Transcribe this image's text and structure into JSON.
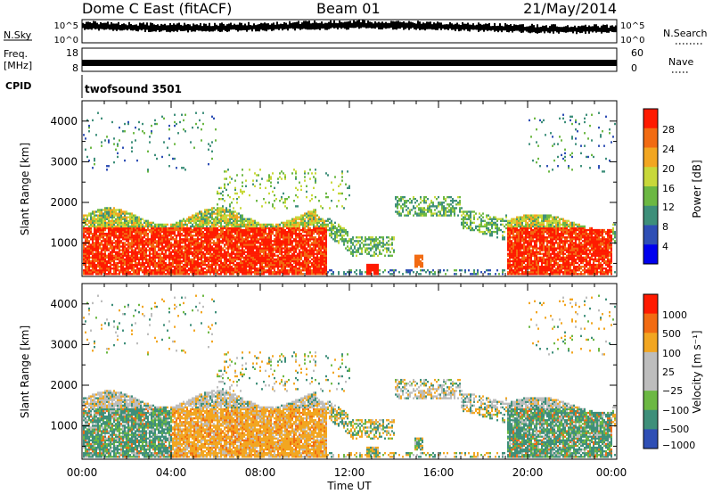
{
  "header": {
    "station": "Dome C East (fitACF)",
    "beam": "Beam 01",
    "date": "21/May/2014"
  },
  "strips": {
    "noise": {
      "left_label": "N.Sky",
      "right_label": "N.Search",
      "left_ticks": [
        "10^5",
        "10^0"
      ],
      "right_ticks": [
        "10^5",
        "10^0"
      ]
    },
    "freq": {
      "left_label_1": "Freq.",
      "left_label_2": "[MHz]",
      "right_label": "Nave",
      "left_ticks": [
        "18",
        "8"
      ],
      "right_ticks": [
        "60",
        "0"
      ],
      "value_mhz": 12.5
    },
    "cpid": {
      "label": "CPID",
      "program": "twofsound 3501"
    }
  },
  "colors": {
    "power": [
      "#0000ee",
      "#2f4fb5",
      "#3e8f7a",
      "#6cb843",
      "#c8d83a",
      "#f2a621",
      "#f26b12",
      "#ff1a00"
    ],
    "velocity": [
      "#ff1a00",
      "#f26b12",
      "#f2a621",
      "#bdbdbd",
      "#bdbdbd",
      "#6cb843",
      "#3e8f7a",
      "#2f4fb5"
    ]
  },
  "chart_data": [
    {
      "type": "heatmap",
      "panel": "power",
      "ylabel": "Slant Range [km]",
      "ylim": [
        180,
        4500
      ],
      "yticks": [
        "1000",
        "2000",
        "3000",
        "4000"
      ],
      "xlim": [
        0,
        24
      ],
      "xlabel": "",
      "colorbar": {
        "label": "Power [dB]",
        "ticks": [
          "28",
          "24",
          "20",
          "16",
          "12",
          "8",
          "4"
        ],
        "range": [
          0,
          32
        ]
      }
    },
    {
      "type": "heatmap",
      "panel": "velocity",
      "ylabel": "Slant Range [km]",
      "ylim": [
        180,
        4500
      ],
      "yticks": [
        "1000",
        "2000",
        "3000",
        "4000"
      ],
      "xlim": [
        0,
        24
      ],
      "xlabel": "Time UT",
      "xticks": [
        "00:00",
        "04:00",
        "08:00",
        "12:00",
        "16:00",
        "20:00",
        "00:00"
      ],
      "colorbar": {
        "label": "Velocity [m s⁻¹]",
        "ticks": [
          "1000",
          "500",
          "100",
          "25",
          "−25",
          "−100",
          "−500",
          "−1000"
        ]
      }
    }
  ]
}
